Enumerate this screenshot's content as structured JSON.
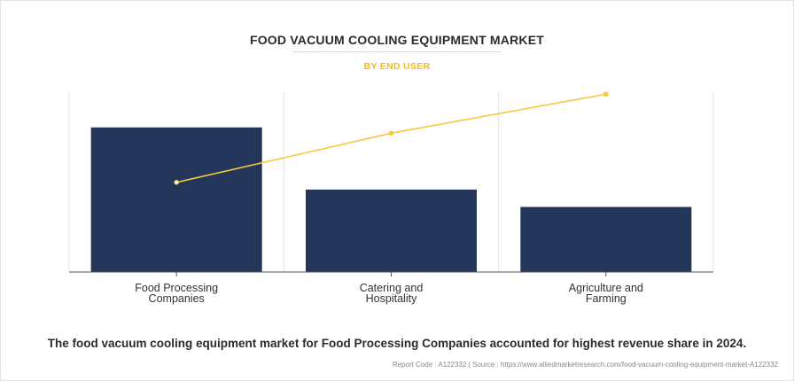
{
  "header": {
    "title": "FOOD VACUUM COOLING EQUIPMENT MARKET",
    "subtitle": "BY END USER"
  },
  "caption": "The food vacuum cooling equipment market for Food Processing Companies accounted for highest revenue share in 2024.",
  "footer": {
    "text": "Report Code : A122332  |  Source : https://www.alliedmarketresearch.com/food-vacuum-cooling-equipment-market-A122332"
  },
  "colors": {
    "bar": "#243659",
    "line": "#f5c842",
    "subtitle": "#f5b923",
    "grid": "#e3e3e3"
  },
  "chart_data": {
    "type": "bar",
    "categories": [
      [
        "Food Processing",
        "Companies"
      ],
      [
        "Catering and",
        "Hospitality"
      ],
      [
        "Agriculture and",
        "Farming"
      ]
    ],
    "series": [
      {
        "values": [
          100,
          57,
          45
        ]
      },
      {
        "type": "line",
        "values": [
          62,
          96,
          123
        ]
      }
    ],
    "ylim": [
      0,
      125
    ],
    "xlabel": "",
    "ylabel": "",
    "grid": "vertical",
    "legend": "none"
  }
}
